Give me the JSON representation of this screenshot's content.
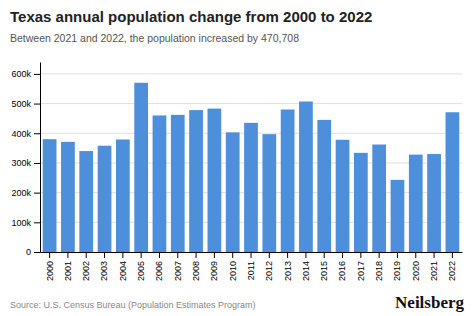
{
  "chart_data": {
    "type": "bar",
    "title": "Texas annual population change from 2000 to 2022",
    "subtitle": "Between 2021 and 2022, the population increased by 470,708",
    "annotations": [
      "Source: U.S. Census Bureau (Population Estimates Program)",
      "Neilsberg"
    ],
    "categories": [
      "2000",
      "2001",
      "2002",
      "2003",
      "2004",
      "2005",
      "2006",
      "2007",
      "2008",
      "2009",
      "2010",
      "2011",
      "2012",
      "2013",
      "2014",
      "2015",
      "2016",
      "2017",
      "2018",
      "2019",
      "2020",
      "2021",
      "2022"
    ],
    "values": [
      380000,
      371000,
      340000,
      358000,
      379000,
      570000,
      460000,
      462000,
      478000,
      483000,
      403000,
      435000,
      397000,
      480000,
      507000,
      445000,
      378000,
      334000,
      362000,
      243000,
      328000,
      330000,
      470708
    ],
    "color": "#4d8fda",
    "ylim": [
      0,
      640000
    ],
    "yticks": [
      0,
      {
        "value": 100000,
        "label": "100k"
      },
      {
        "value": 200000,
        "label": "200k"
      },
      {
        "value": 300000,
        "label": "300k"
      },
      {
        "value": 400000,
        "label": "400k"
      },
      {
        "value": 500000,
        "label": "500k"
      },
      {
        "value": 600000,
        "label": "600k"
      }
    ],
    "grid": true
  }
}
